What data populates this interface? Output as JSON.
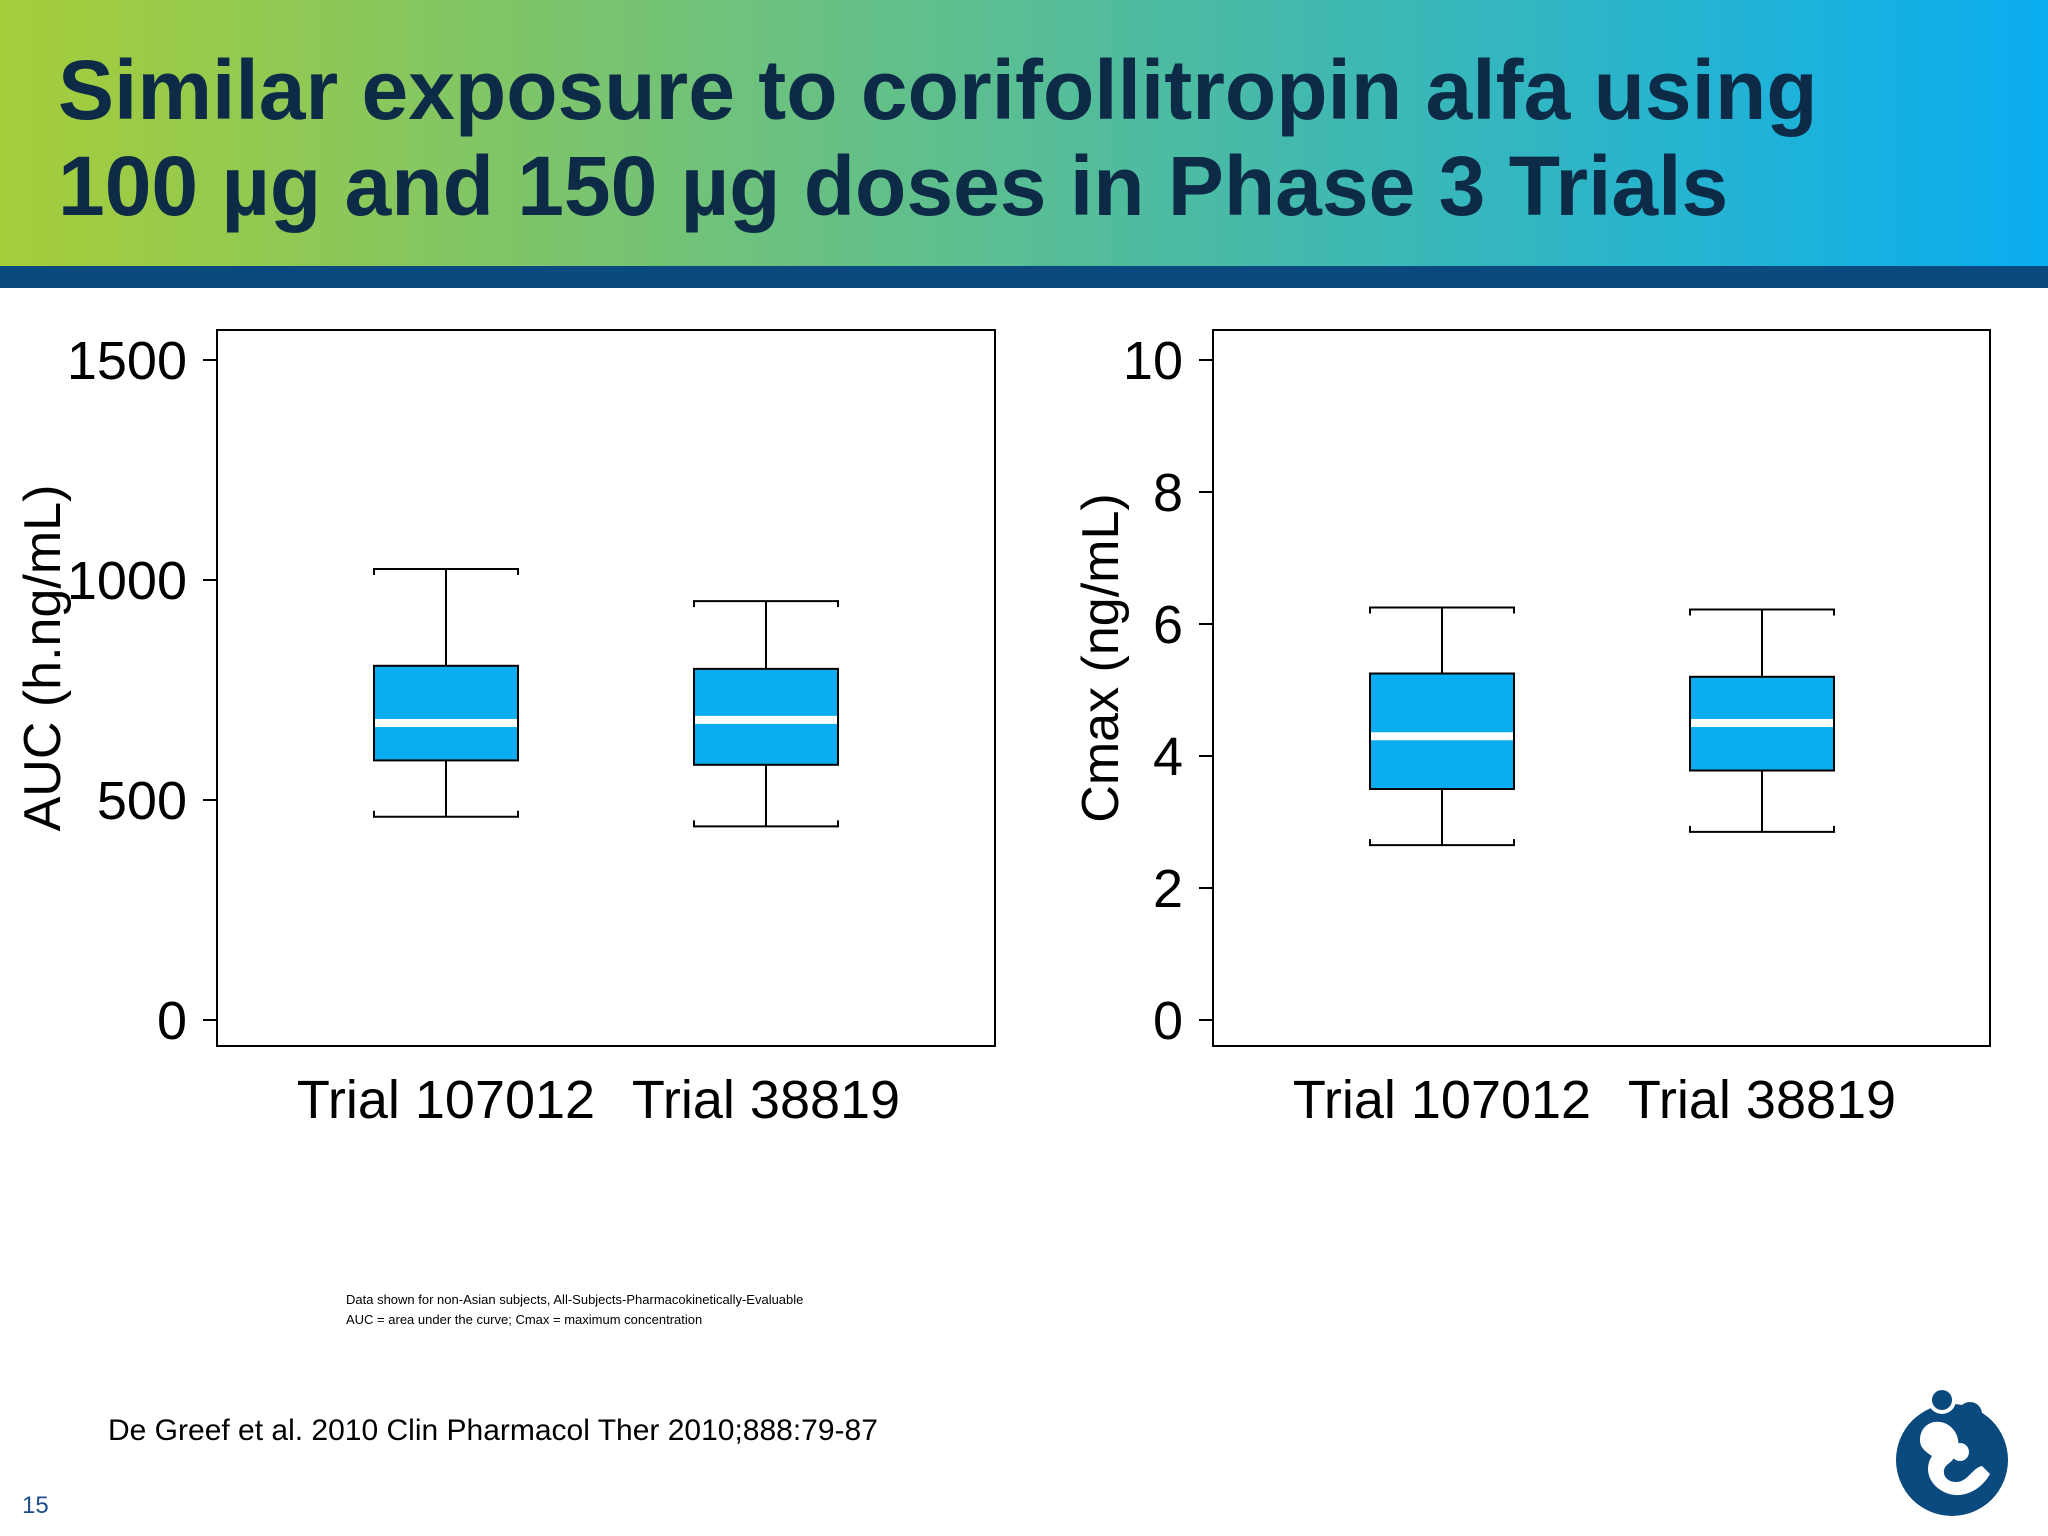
{
  "slide": {
    "title_lines": [
      "Similar exposure to corifollitropin alfa using",
      "100 µg and 150 µg doses in Phase 3 Trials"
    ],
    "footnotes": [
      "Data shown for non-Asian subjects, All-Subjects-Pharmacokinetically-Evaluable",
      "AUC = area under the curve; Cmax = maximum concentration"
    ],
    "reference": "De Greef et al. 2010 Clin Pharmacol Ther 2010;888:79-87",
    "page_number": "15",
    "logo_icon": "mother-child-logo-icon"
  },
  "colors": {
    "header_gradient_start": "#a6cd3a",
    "header_gradient_end": "#0aaef0",
    "header_bar": "#0b4a7e",
    "title_text": "#0d2a46",
    "box_fill": "#0aaef0",
    "median_line": "#ffffff",
    "page_number": "#1f4e8c",
    "logo": "#0b4a7e"
  },
  "chart_data": [
    {
      "type": "box",
      "ylabel": "AUC (h.ng/mL)",
      "xlabel": "",
      "ylim": [
        0,
        1500
      ],
      "yticks": [
        0,
        500,
        1000,
        1500
      ],
      "categories": [
        "Trial 107012",
        "Trial 38819"
      ],
      "boxes": [
        {
          "category": "Trial 107012",
          "whisker_low": 462,
          "q1": 590,
          "median": 675,
          "q3": 805,
          "whisker_high": 1025
        },
        {
          "category": "Trial 38819",
          "whisker_low": 440,
          "q1": 580,
          "median": 682,
          "q3": 798,
          "whisker_high": 952
        }
      ],
      "grid": false,
      "legend": "none"
    },
    {
      "type": "box",
      "ylabel": "Cmax (ng/mL)",
      "xlabel": "",
      "ylim": [
        0,
        10
      ],
      "yticks": [
        0,
        2,
        4,
        6,
        8,
        10
      ],
      "categories": [
        "Trial 107012",
        "Trial 38819"
      ],
      "boxes": [
        {
          "category": "Trial 107012",
          "whisker_low": 2.65,
          "q1": 3.5,
          "median": 4.3,
          "q3": 5.25,
          "whisker_high": 6.25
        },
        {
          "category": "Trial 38819",
          "whisker_low": 2.85,
          "q1": 3.78,
          "median": 4.5,
          "q3": 5.2,
          "whisker_high": 6.22
        }
      ],
      "grid": false,
      "legend": "none"
    }
  ]
}
